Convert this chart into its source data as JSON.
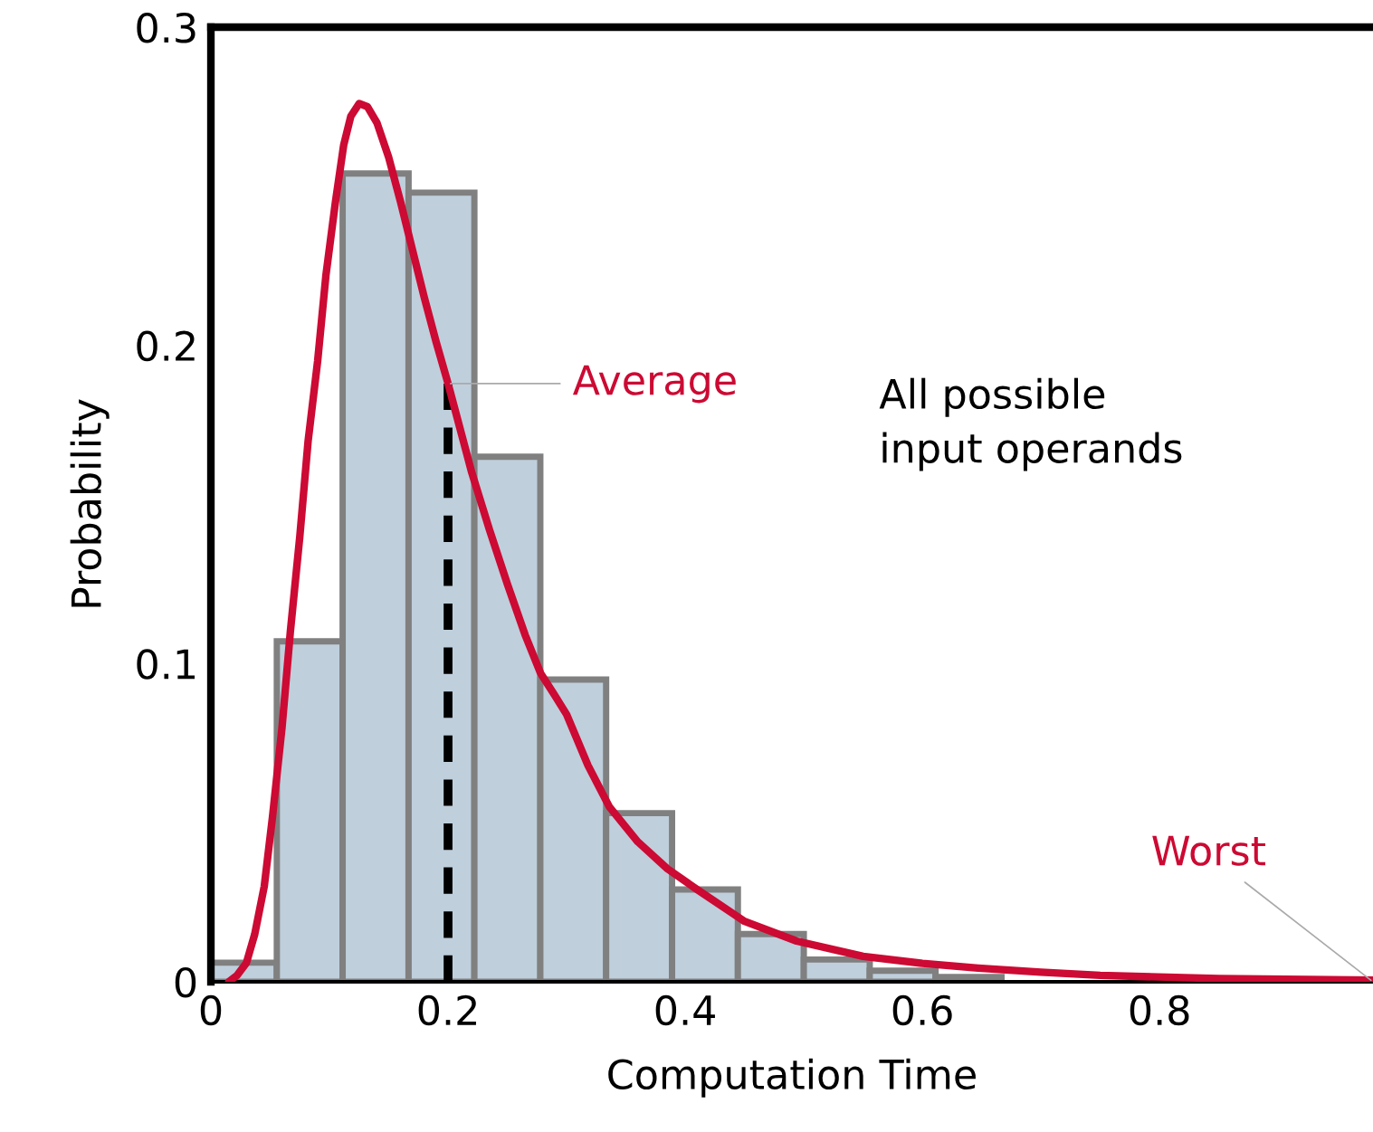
{
  "chart_data": {
    "type": "histogram",
    "xlabel": "Computation Time",
    "ylabel": "Probability",
    "bins": [
      0,
      0.0556,
      0.1111,
      0.1667,
      0.2222,
      0.2778,
      0.3333,
      0.3889,
      0.4444,
      0.5,
      0.5556,
      0.6111,
      0.6667
    ],
    "values": [
      0.006,
      0.107,
      0.254,
      0.248,
      0.165,
      0.095,
      0.053,
      0.029,
      0.015,
      0.007,
      0.0035,
      0.0015
    ],
    "color": "#bfcfdc",
    "series": [
      {
        "type": "line",
        "color": "#cc0a33",
        "x": [
          0.015,
          0.022,
          0.03,
          0.037,
          0.045,
          0.052,
          0.06,
          0.067,
          0.075,
          0.082,
          0.09,
          0.097,
          0.105,
          0.112,
          0.118,
          0.125,
          0.132,
          0.14,
          0.15,
          0.16,
          0.17,
          0.18,
          0.19,
          0.2,
          0.21,
          0.22,
          0.235,
          0.25,
          0.265,
          0.278,
          0.29,
          0.3,
          0.318,
          0.336,
          0.36,
          0.385,
          0.41,
          0.45,
          0.494,
          0.55,
          0.6,
          0.647,
          0.7,
          0.75,
          0.85,
          0.98
        ],
        "values": [
          0,
          0.002,
          0.006,
          0.015,
          0.03,
          0.052,
          0.08,
          0.11,
          0.14,
          0.17,
          0.195,
          0.222,
          0.245,
          0.263,
          0.272,
          0.276,
          0.275,
          0.27,
          0.259,
          0.245,
          0.23,
          0.215,
          0.201,
          0.188,
          0.174,
          0.16,
          0.142,
          0.125,
          0.109,
          0.097,
          0.09,
          0.084,
          0.068,
          0.055,
          0.044,
          0.0355,
          0.029,
          0.019,
          0.0128,
          0.008,
          0.0058,
          0.0043,
          0.003,
          0.002,
          0.001,
          0.0005
        ]
      },
      {
        "type": "line",
        "color": "#000000",
        "line_style": "dashed",
        "x": [
          0.2,
          0.2
        ],
        "values": [
          0,
          0.188
        ]
      }
    ],
    "annotations": [
      {
        "text": "Average",
        "x": 0.2,
        "y": 0.188
      },
      {
        "text": "Worst",
        "x": 0.98,
        "y": 0
      },
      "All possible\ninput operands"
    ],
    "xlim": [
      0,
      0.98
    ],
    "ylim": [
      0,
      0.3
    ],
    "xticks": [
      0,
      0.2,
      0.4,
      0.6,
      0.8
    ],
    "yticks": [
      0,
      0.1,
      0.2,
      0.3
    ],
    "grid": false,
    "legend": false
  }
}
